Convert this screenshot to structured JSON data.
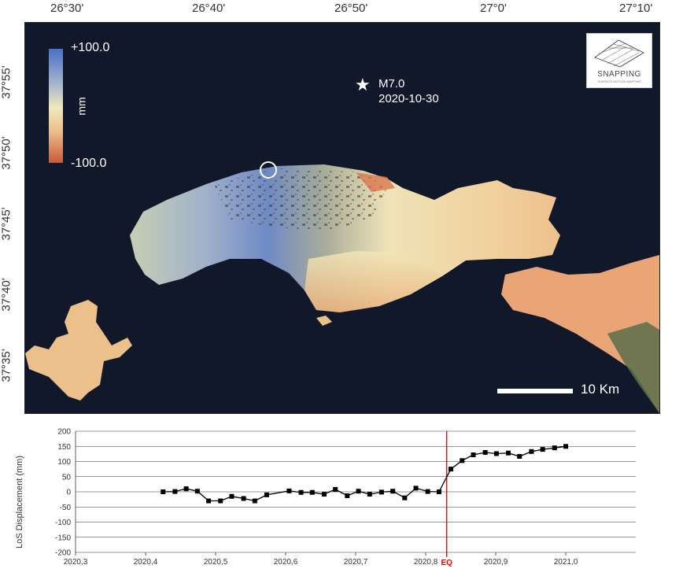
{
  "map": {
    "lon_ticks": [
      "26°30'",
      "26°40'",
      "26°50'",
      "27°0'",
      "27°10'"
    ],
    "lat_ticks": [
      "37°55'",
      "37°50'",
      "37°45'",
      "37°40'",
      "37°35'"
    ],
    "legend": {
      "max_label": "+100.0",
      "min_label": "-100.0",
      "unit": "mm"
    },
    "earthquake": {
      "magnitude": "M7.0",
      "date": "2020-10-30",
      "icon": "star-icon"
    },
    "logo": {
      "title": "SNAPPING",
      "subtitle": "SURFACE MOTION MAPPING"
    },
    "scale_bar": {
      "label": "10 Km"
    },
    "colors": {
      "background": "#101829",
      "uplift": "#4a6fc7",
      "neutral": "#f1e8bd",
      "subsidence": "#c85a3c"
    }
  },
  "chart_data": {
    "type": "line",
    "ylabel": "LoS Displacement (mm)",
    "xlabel": "",
    "xlim": [
      2020.3,
      2021.1
    ],
    "ylim": [
      -200,
      200
    ],
    "x_tick_labels": [
      "2020,3",
      "2020,4",
      "2020,5",
      "2020,6",
      "2020,7",
      "2020,8",
      "2020,9",
      "2021,0"
    ],
    "y_tick_labels": [
      "200",
      "150",
      "100",
      "50",
      "0",
      "-50",
      "-100",
      "-150",
      "-200"
    ],
    "grid": true,
    "event_marker": {
      "x": 2020.83,
      "label": "EQ",
      "color": "#e00000"
    },
    "series": [
      {
        "color": "#000000",
        "x": [
          2020.425,
          2020.442,
          2020.458,
          2020.474,
          2020.49,
          2020.507,
          2020.523,
          2020.54,
          2020.556,
          2020.573,
          2020.605,
          2020.622,
          2020.638,
          2020.655,
          2020.671,
          2020.688,
          2020.704,
          2020.72,
          2020.737,
          2020.753,
          2020.77,
          2020.786,
          2020.803,
          2020.819,
          2020.836,
          2020.852,
          2020.868,
          2020.885,
          2020.901,
          2020.918,
          2020.934,
          2020.951,
          2020.967,
          2020.984,
          2021.0
        ],
        "y": [
          0,
          1,
          10,
          2,
          -30,
          -30,
          -15,
          -22,
          -30,
          -10,
          3,
          -2,
          -2,
          -8,
          8,
          -13,
          2,
          -8,
          -1,
          2,
          -20,
          12,
          1,
          0,
          75,
          103,
          122,
          130,
          126,
          128,
          117,
          133,
          140,
          145,
          150
        ]
      }
    ]
  }
}
